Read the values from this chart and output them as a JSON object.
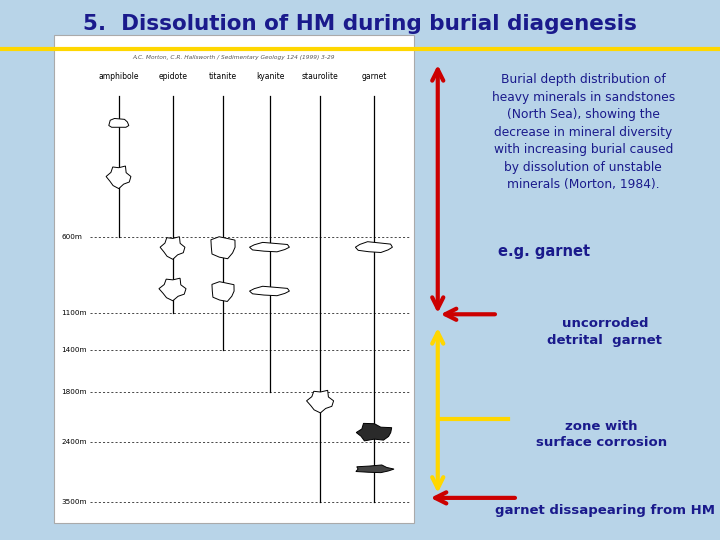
{
  "title": "5.  Dissolution of HM during burial diagenesis",
  "bg_color": "#B8D4E8",
  "title_color": "#1a1a8c",
  "title_strip_color": "#FFD700",
  "description_text": "Burial depth distribution of\nheavy minerals in sandstones\n(North Sea), showing the\ndecrease in mineral diversity\nwith increasing burial caused\nby dissolution of unstable\nminerals (Morton, 1984).",
  "label_eg": "e.g. garnet",
  "label_uncorroded": "uncorroded\ndetrital  garnet",
  "label_zone": "zone with\nsurface corrosion",
  "label_disappearing": "garnet dissapearing from HM",
  "text_color": "#1a1a8c",
  "arrow_red": "#CC0000",
  "arrow_yellow": "#FFD700",
  "ref_text": "A.C. Morton, C.R. Hallsworth / Sedimentary Geology 124 (1999) 3-29",
  "headers": [
    "amphibole",
    "epidote",
    "titanite",
    "kyanite",
    "staurolite",
    "garnet"
  ],
  "depth_labels": [
    "600m",
    "1100m",
    "1400m",
    "1800m",
    "2400m",
    "3500m"
  ],
  "panel_l": 0.075,
  "panel_r": 0.575,
  "panel_t": 0.935,
  "panel_b": 0.032
}
